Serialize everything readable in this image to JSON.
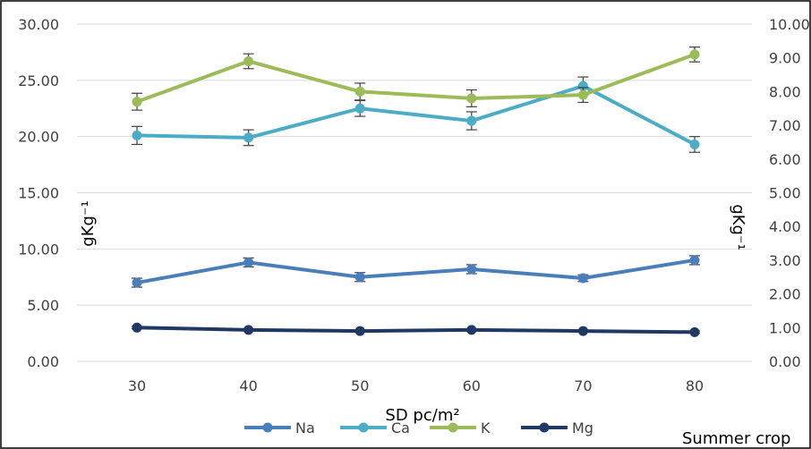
{
  "chart_data": {
    "type": "line",
    "categories": [
      "30",
      "40",
      "50",
      "60",
      "70",
      "80"
    ],
    "xlabel": "SD pc/m²",
    "ylabel_left": "gKg⁻¹",
    "ylabel_right": "gKg⁻¹",
    "ylim_left": [
      0,
      30
    ],
    "ylim_right": [
      0,
      10
    ],
    "y_ticks_left": [
      "0.00",
      "5.00",
      "10.00",
      "15.00",
      "20.00",
      "25.00",
      "30.00"
    ],
    "y_ticks_right": [
      "0.00",
      "1.00",
      "2.00",
      "3.00",
      "4.00",
      "5.00",
      "6.00",
      "7.00",
      "8.00",
      "9.00",
      "10.00"
    ],
    "grid": "horizontal",
    "legend": "bottom",
    "series": [
      {
        "name": "Na",
        "axis": "left",
        "color": "#4a7ebb",
        "values": [
          7.0,
          8.8,
          7.5,
          8.2,
          7.4,
          9.0
        ],
        "errors": [
          0.4,
          0.4,
          0.4,
          0.4,
          0.3,
          0.4
        ]
      },
      {
        "name": "Ca",
        "axis": "left",
        "color": "#4bacc6",
        "values": [
          20.1,
          19.9,
          22.5,
          21.4,
          24.5,
          19.3
        ],
        "errors": [
          0.8,
          0.7,
          0.7,
          0.8,
          0.8,
          0.7
        ]
      },
      {
        "name": "K",
        "axis": "right",
        "color": "#9bbb59",
        "values": [
          7.7,
          8.9,
          8.0,
          7.8,
          7.9,
          9.1
        ],
        "errors": [
          0.25,
          0.22,
          0.25,
          0.25,
          0.22,
          0.22
        ]
      },
      {
        "name": "Mg",
        "axis": "left",
        "color": "#1f3864",
        "values": [
          3.0,
          2.8,
          2.7,
          2.8,
          2.7,
          2.6
        ],
        "errors": [
          0.1,
          0.1,
          0.1,
          0.1,
          0.1,
          0.1
        ]
      }
    ]
  },
  "caption": "Summer crop"
}
